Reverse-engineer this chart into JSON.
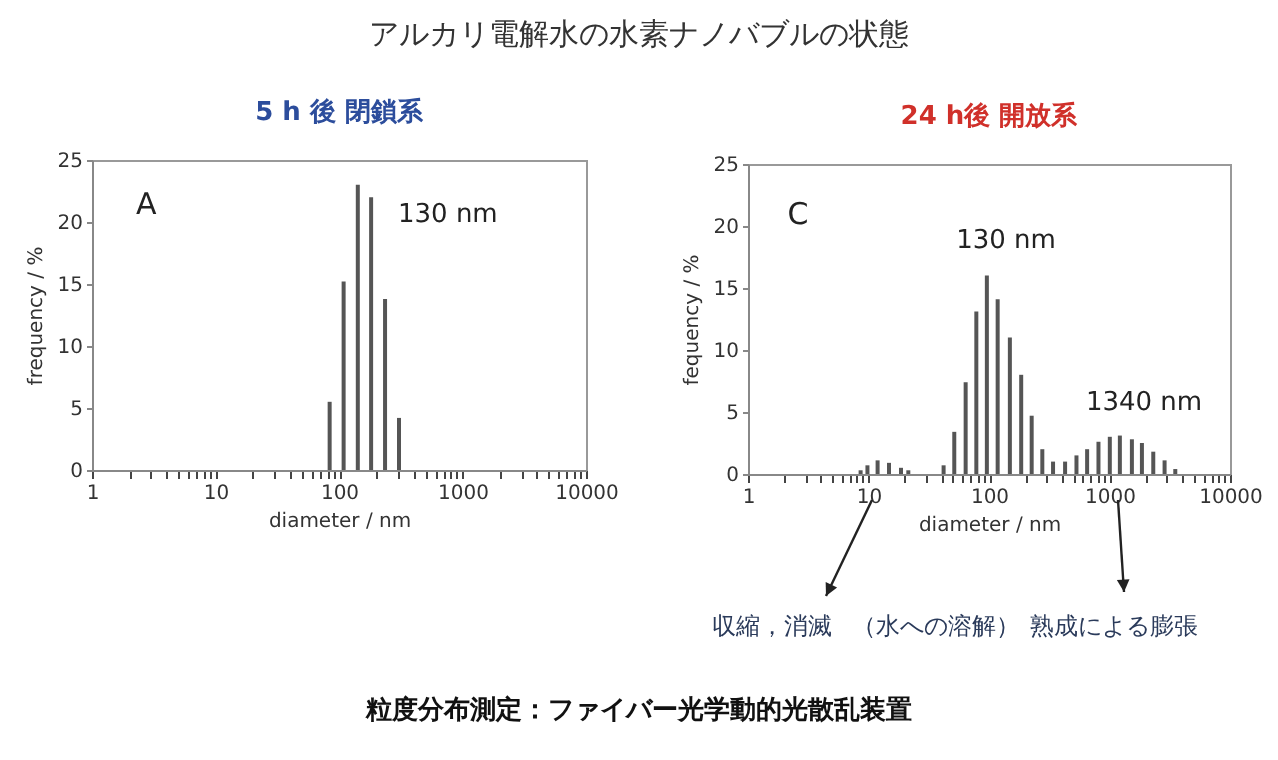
{
  "chart_data": [
    {
      "type": "bar",
      "title": "5 h 後 閉鎖系",
      "xlabel": "diameter / nm",
      "ylabel": "frequency / %",
      "log": "x",
      "color": "#555555",
      "x": [
        84,
        109,
        142,
        182,
        236,
        306
      ],
      "values": [
        5.5,
        15.2,
        23,
        22,
        13.8,
        4.2
      ],
      "xlim": [
        1,
        10000
      ],
      "ylim": [
        0,
        25
      ],
      "xticks": [
        1,
        {
          "value": 2,
          "label": null
        },
        {
          "value": 3,
          "label": null
        },
        {
          "value": 4,
          "label": null
        },
        {
          "value": 5,
          "label": null
        },
        {
          "value": 6,
          "label": null
        },
        {
          "value": 7,
          "label": null
        },
        {
          "value": 8,
          "label": null
        },
        {
          "value": 9,
          "label": null
        },
        10,
        {
          "value": 20,
          "label": null
        },
        {
          "value": 30,
          "label": null
        },
        {
          "value": 40,
          "label": null
        },
        {
          "value": 50,
          "label": null
        },
        {
          "value": 60,
          "label": null
        },
        {
          "value": 70,
          "label": null
        },
        {
          "value": 80,
          "label": null
        },
        {
          "value": 90,
          "label": null
        },
        100,
        {
          "value": 200,
          "label": null
        },
        {
          "value": 300,
          "label": null
        },
        {
          "value": 400,
          "label": null
        },
        {
          "value": 500,
          "label": null
        },
        {
          "value": 600,
          "label": null
        },
        {
          "value": 700,
          "label": null
        },
        {
          "value": 800,
          "label": null
        },
        {
          "value": 900,
          "label": null
        },
        1000,
        {
          "value": 2000,
          "label": null
        },
        {
          "value": 3000,
          "label": null
        },
        {
          "value": 4000,
          "label": null
        },
        {
          "value": 5000,
          "label": null
        },
        {
          "value": 6000,
          "label": null
        },
        {
          "value": 7000,
          "label": null
        },
        {
          "value": 8000,
          "label": null
        },
        {
          "value": 9000,
          "label": null
        },
        10000
      ],
      "yticks": [
        0,
        5,
        10,
        15,
        20,
        25
      ],
      "annotations": [
        "A",
        "130 nm"
      ]
    },
    {
      "type": "bar",
      "title": "24 h後 開放系",
      "xlabel": "diameter / nm",
      "ylabel": "fequency / %",
      "log": "x",
      "color": "#555555",
      "x": [
        8.6,
        9.8,
        11.9,
        14.8,
        18.6,
        21.4,
        42,
        51.5,
        64,
        78.5,
        96,
        118,
        149,
        185,
        226,
        277,
        340,
        428,
        532,
        652,
        810,
        1006,
        1219,
        1534,
        1858,
        2308,
        2865,
        3515
      ],
      "values": [
        0.3,
        0.7,
        1.1,
        0.9,
        0.5,
        0.3,
        0.7,
        3.4,
        7.4,
        13.1,
        16,
        14.1,
        11,
        8,
        4.7,
        2,
        1,
        1,
        1.5,
        2,
        2.6,
        3,
        3.1,
        2.8,
        2.5,
        1.8,
        1.1,
        0.4
      ],
      "xlim": [
        1,
        10000
      ],
      "ylim": [
        0,
        25
      ],
      "xticks": [
        1,
        {
          "value": 2,
          "label": null
        },
        {
          "value": 3,
          "label": null
        },
        {
          "value": 4,
          "label": null
        },
        {
          "value": 5,
          "label": null
        },
        {
          "value": 6,
          "label": null
        },
        {
          "value": 7,
          "label": null
        },
        {
          "value": 8,
          "label": null
        },
        {
          "value": 9,
          "label": null
        },
        10,
        {
          "value": 20,
          "label": null
        },
        {
          "value": 30,
          "label": null
        },
        {
          "value": 40,
          "label": null
        },
        {
          "value": 50,
          "label": null
        },
        {
          "value": 60,
          "label": null
        },
        {
          "value": 70,
          "label": null
        },
        {
          "value": 80,
          "label": null
        },
        {
          "value": 90,
          "label": null
        },
        100,
        {
          "value": 200,
          "label": null
        },
        {
          "value": 300,
          "label": null
        },
        {
          "value": 400,
          "label": null
        },
        {
          "value": 500,
          "label": null
        },
        {
          "value": 600,
          "label": null
        },
        {
          "value": 700,
          "label": null
        },
        {
          "value": 800,
          "label": null
        },
        {
          "value": 900,
          "label": null
        },
        1000,
        {
          "value": 2000,
          "label": null
        },
        {
          "value": 3000,
          "label": null
        },
        {
          "value": 4000,
          "label": null
        },
        {
          "value": 5000,
          "label": null
        },
        {
          "value": 6000,
          "label": null
        },
        {
          "value": 7000,
          "label": null
        },
        {
          "value": 8000,
          "label": null
        },
        {
          "value": 9000,
          "label": null
        },
        10000
      ],
      "yticks": [
        0,
        5,
        10,
        15,
        20,
        25
      ],
      "annotations": [
        "C",
        "130 nm",
        "1340 nm",
        "収縮，消滅",
        "（水への溶解）",
        "熟成による膨張"
      ]
    },
    {
      "type": "other",
      "title": "アルカリ電解水の水素ナノバブルの状態",
      "annotations": [
        "粒度分布測定：ファイバー光学動的光散乱装置"
      ]
    }
  ]
}
